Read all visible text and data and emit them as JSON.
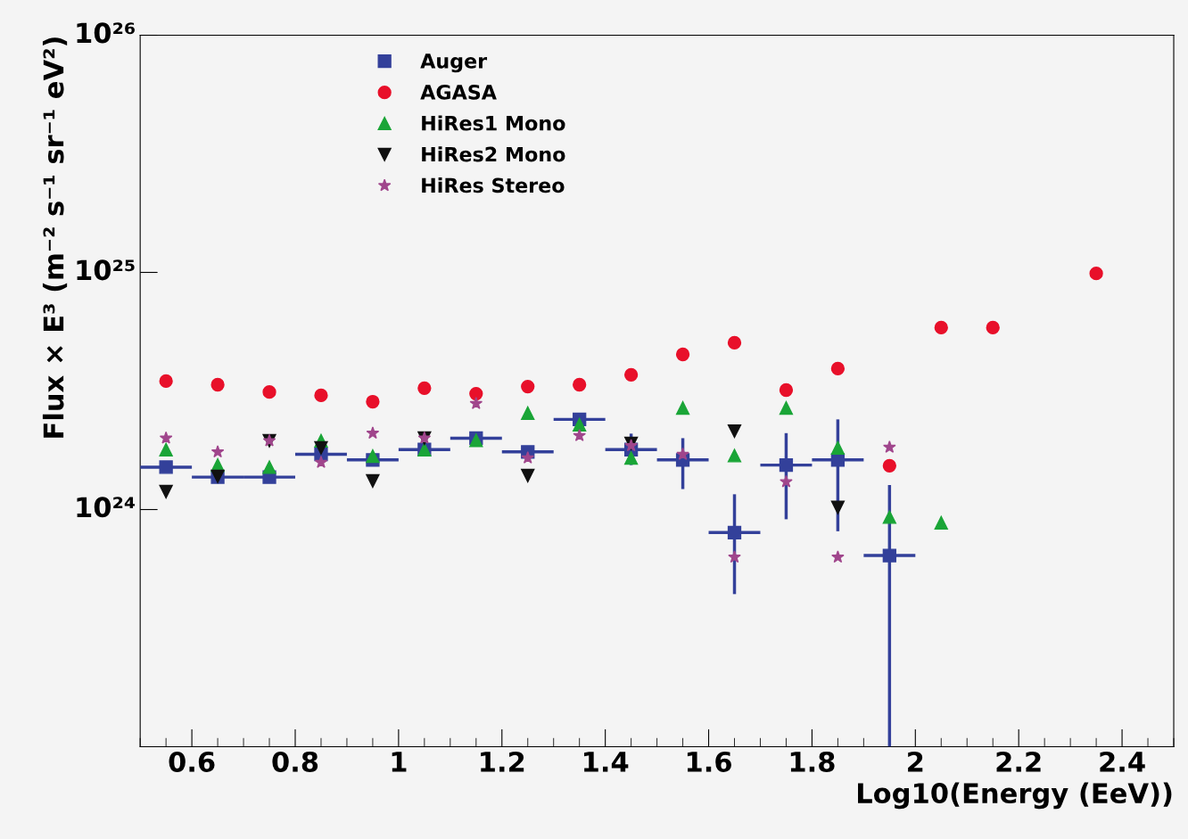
{
  "chart_data": {
    "type": "scatter",
    "xlabel": "Log10(Energy (EeV))",
    "ylabel": "Flux × E³ (m⁻² s⁻¹ sr⁻¹ eV²)",
    "log": "y",
    "xlim": [
      0.5,
      2.5
    ],
    "xticks": [
      0.6,
      0.8,
      1,
      1.2,
      1.4,
      1.6,
      1.8,
      2,
      2.2,
      2.4
    ],
    "ylim": [
      1e+23,
      1e+26
    ],
    "yticks": [
      {
        "value": 1e+24,
        "label": "10²⁴"
      },
      {
        "value": 1e+25,
        "label": "10²⁵"
      },
      {
        "value": 1e+26,
        "label": "10²⁶"
      }
    ],
    "grid": false,
    "legend": "top left",
    "series": [
      {
        "name": "Auger",
        "color": "#33409a",
        "marker": "square",
        "x": [
          0.55,
          0.65,
          0.75,
          0.85,
          0.95,
          1.05,
          1.15,
          1.25,
          1.35,
          1.45,
          1.55,
          1.65,
          1.75,
          1.85,
          1.95
        ],
        "values": [
          1.51e+24,
          1.37e+24,
          1.37e+24,
          1.71e+24,
          1.62e+24,
          1.79e+24,
          2e+24,
          1.75e+24,
          2.4e+24,
          1.79e+24,
          1.62e+24,
          8e+23,
          1.54e+24,
          1.62e+24,
          6.4e+23
        ],
        "xerrors": [
          0.05,
          0.05,
          0.05,
          0.05,
          0.05,
          0.05,
          0.05,
          0.05,
          0.05,
          0.05,
          0.05,
          0.05,
          0.05,
          0.05,
          0.05
        ],
        "errors": [
          null,
          null,
          null,
          null,
          null,
          null,
          null,
          null,
          null,
          [
            1.54e+24,
            2.09e+24
          ],
          [
            1.22e+24,
            2e+24
          ],
          [
            4.4e+23,
            1.16e+24
          ],
          [
            9.1e+23,
            2.1e+24
          ],
          [
            8.1e+23,
            2.4e+24
          ],
          [
            1e+23,
            1.27e+24
          ]
        ]
      },
      {
        "name": "AGASA",
        "color": "#e8102a",
        "marker": "circle",
        "x": [
          0.55,
          0.65,
          0.75,
          0.85,
          0.95,
          1.05,
          1.15,
          1.25,
          1.35,
          1.45,
          1.55,
          1.65,
          1.75,
          1.85,
          1.95,
          2.05,
          2.15,
          2.35
        ],
        "values": [
          3.48e+24,
          3.36e+24,
          3.13e+24,
          3.03e+24,
          2.85e+24,
          3.25e+24,
          3.08e+24,
          3.3e+24,
          3.36e+24,
          3.7e+24,
          4.51e+24,
          5.05e+24,
          3.19e+24,
          3.93e+24,
          1.53e+24,
          5.85e+24,
          5.85e+24,
          9.9e+24
        ]
      },
      {
        "name": "HiRes1 Mono",
        "color": "#1aa537",
        "marker": "triangle",
        "x": [
          0.55,
          0.65,
          0.75,
          0.85,
          0.95,
          1.05,
          1.15,
          1.25,
          1.35,
          1.45,
          1.55,
          1.65,
          1.75,
          1.85,
          1.95,
          2.05
        ],
        "values": [
          1.79e+24,
          1.54e+24,
          1.51e+24,
          1.95e+24,
          1.68e+24,
          1.79e+24,
          1.96e+24,
          2.55e+24,
          2.28e+24,
          1.65e+24,
          2.68e+24,
          1.69e+24,
          2.68e+24,
          1.82e+24,
          9.3e+23,
          8.8e+23
        ]
      },
      {
        "name": "HiRes2 Mono",
        "color": "#111111",
        "marker": "triangle-down",
        "x": [
          0.55,
          0.65,
          0.75,
          0.85,
          0.95,
          1.05,
          1.25,
          1.45,
          1.65,
          1.85
        ],
        "values": [
          1.19e+24,
          1.38e+24,
          1.95e+24,
          1.82e+24,
          1.32e+24,
          2e+24,
          1.39e+24,
          1.9e+24,
          2.14e+24,
          1.02e+24
        ]
      },
      {
        "name": "HiRes Stereo",
        "color": "#a0468c",
        "marker": "star",
        "x": [
          0.55,
          0.65,
          0.75,
          0.85,
          0.95,
          1.05,
          1.15,
          1.25,
          1.35,
          1.45,
          1.55,
          1.65,
          1.75,
          1.85,
          1.95
        ],
        "values": [
          2e+24,
          1.75e+24,
          1.95e+24,
          1.58e+24,
          2.1e+24,
          2e+24,
          2.8e+24,
          1.65e+24,
          2.05e+24,
          1.86e+24,
          1.71e+24,
          6.3e+23,
          1.31e+24,
          6.3e+23,
          1.83e+24
        ]
      }
    ]
  }
}
